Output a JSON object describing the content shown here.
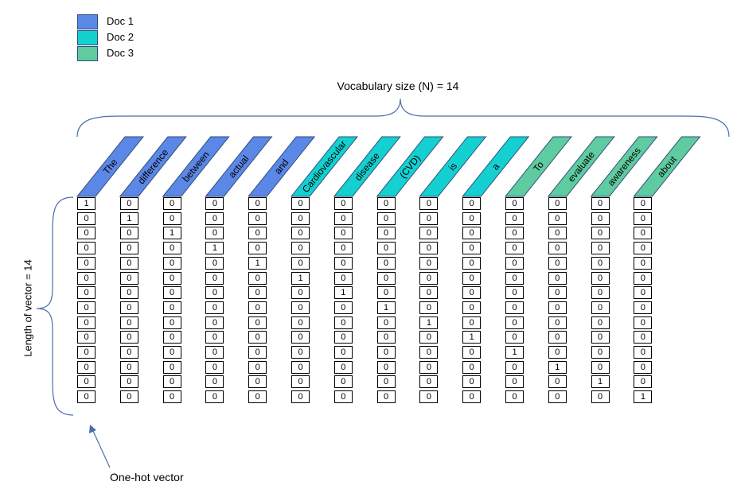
{
  "legend": [
    {
      "label": "Doc 1",
      "color": "#5b87e6"
    },
    {
      "label": "Doc 2",
      "color": "#14d0d0"
    },
    {
      "label": "Doc 3",
      "color": "#5fcba0"
    }
  ],
  "vocab_title": "Vocabulary size (N) = 14",
  "vector_length_label": "Length of vector = 14",
  "onehot_label": "One-hot vector",
  "words": [
    {
      "text": "The",
      "doc": 0
    },
    {
      "text": "difference",
      "doc": 0
    },
    {
      "text": "between",
      "doc": 0
    },
    {
      "text": "actual",
      "doc": 0
    },
    {
      "text": "and",
      "doc": 0
    },
    {
      "text": "Cardiovascular",
      "doc": 1
    },
    {
      "text": "disease",
      "doc": 1
    },
    {
      "text": "(CVD)",
      "doc": 1
    },
    {
      "text": "is",
      "doc": 1
    },
    {
      "text": "a",
      "doc": 1
    },
    {
      "text": "To",
      "doc": 2
    },
    {
      "text": "evaluate",
      "doc": 2
    },
    {
      "text": "awareness",
      "doc": 2
    },
    {
      "text": "about",
      "doc": 2
    }
  ],
  "vector_length": 14,
  "hot_index": [
    0,
    1,
    2,
    3,
    4,
    5,
    6,
    7,
    8,
    9,
    10,
    11,
    12,
    13
  ],
  "colors": {
    "outline": "#2f4b7c",
    "brace": "#4a6fa5",
    "arrow": "#4a6fa5"
  }
}
